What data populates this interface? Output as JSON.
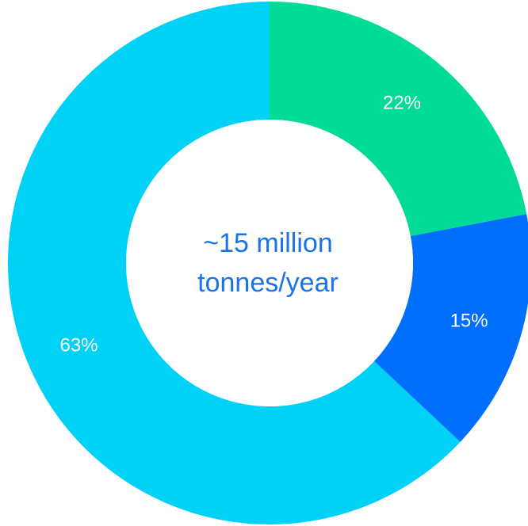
{
  "chart_data": {
    "type": "pie",
    "variant": "donut",
    "slices": [
      {
        "label": "22%",
        "value": 22,
        "color": "#00dc96"
      },
      {
        "label": "15%",
        "value": 15,
        "color": "#006ffd"
      },
      {
        "label": "63%",
        "value": 63,
        "color": "#00d1f7"
      }
    ],
    "center_text": [
      "~15 million",
      "tonnes/year"
    ],
    "center_text_color": "#1a73e8",
    "label_color": "#ffffff",
    "start_angle": "12 o'clock",
    "direction": "clockwise",
    "legend": "none"
  }
}
